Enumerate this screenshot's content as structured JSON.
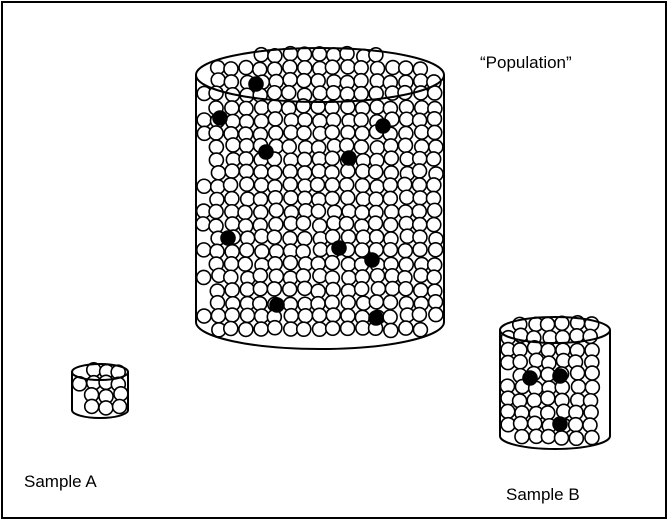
{
  "labels": {
    "population": "“Population”",
    "sample_a": "Sample A",
    "sample_b": "Sample B"
  }
}
